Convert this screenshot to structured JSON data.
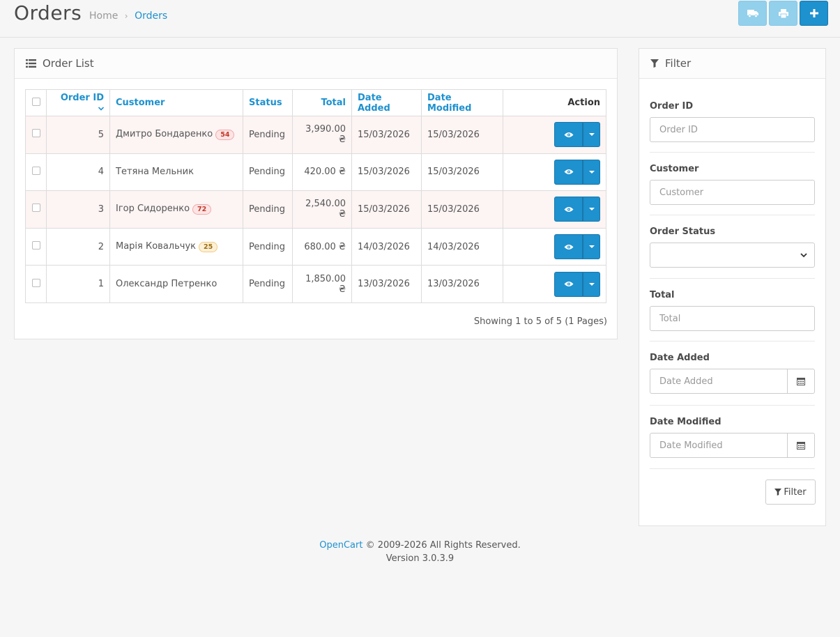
{
  "header": {
    "title": "Orders",
    "breadcrumb": [
      {
        "label": "Home"
      },
      {
        "label": "Orders"
      }
    ],
    "breadcrumb_separator": "›",
    "buttons": [
      {
        "icon": "truck-icon"
      },
      {
        "icon": "print-icon"
      },
      {
        "icon": "plus-icon"
      }
    ]
  },
  "order_list": {
    "heading": "Order List",
    "columns": {
      "order_id": "Order ID",
      "customer": "Customer",
      "status": "Status",
      "total": "Total",
      "date_added": "Date Added",
      "date_modified": "Date Modified",
      "action": "Action"
    },
    "rows": [
      {
        "order_id": "5",
        "customer": "Дмитро Бондаренко",
        "badge": "54",
        "badge_color": "red",
        "status": "Pending",
        "total": "3,990.00 ₴",
        "date_added": "15/03/2026",
        "date_modified": "15/03/2026",
        "highlight": true
      },
      {
        "order_id": "4",
        "customer": "Тетяна Мельник",
        "badge": "",
        "badge_color": "",
        "status": "Pending",
        "total": "420.00 ₴",
        "date_added": "15/03/2026",
        "date_modified": "15/03/2026",
        "highlight": false
      },
      {
        "order_id": "3",
        "customer": "Ігор Сидоренко",
        "badge": "72",
        "badge_color": "red",
        "status": "Pending",
        "total": "2,540.00 ₴",
        "date_added": "15/03/2026",
        "date_modified": "15/03/2026",
        "highlight": true
      },
      {
        "order_id": "2",
        "customer": "Марія Ковальчук",
        "badge": "25",
        "badge_color": "yellow",
        "status": "Pending",
        "total": "680.00 ₴",
        "date_added": "14/03/2026",
        "date_modified": "14/03/2026",
        "highlight": false
      },
      {
        "order_id": "1",
        "customer": "Олександр Петренко",
        "badge": "",
        "badge_color": "",
        "status": "Pending",
        "total": "1,850.00 ₴",
        "date_added": "13/03/2026",
        "date_modified": "13/03/2026",
        "highlight": false
      }
    ],
    "pagination_text": "Showing 1 to 5 of 5 (1 Pages)"
  },
  "filter": {
    "heading": "Filter",
    "order_id": {
      "label": "Order ID",
      "placeholder": "Order ID",
      "value": ""
    },
    "customer": {
      "label": "Customer",
      "placeholder": "Customer",
      "value": ""
    },
    "order_status": {
      "label": "Order Status",
      "value": ""
    },
    "total": {
      "label": "Total",
      "placeholder": "Total",
      "value": ""
    },
    "date_added": {
      "label": "Date Added",
      "placeholder": "Date Added",
      "value": ""
    },
    "date_modified": {
      "label": "Date Modified",
      "placeholder": "Date Modified",
      "value": ""
    },
    "button_label": "Filter"
  },
  "footer": {
    "brand": "OpenCart",
    "copyright": "© 2009-2026 All Rights Reserved.",
    "version": "Version 3.0.3.9"
  },
  "colors": {
    "accent": "#1e91cf",
    "accent_light": "#92d0eb",
    "row_highlight": "#fdf4f4"
  }
}
